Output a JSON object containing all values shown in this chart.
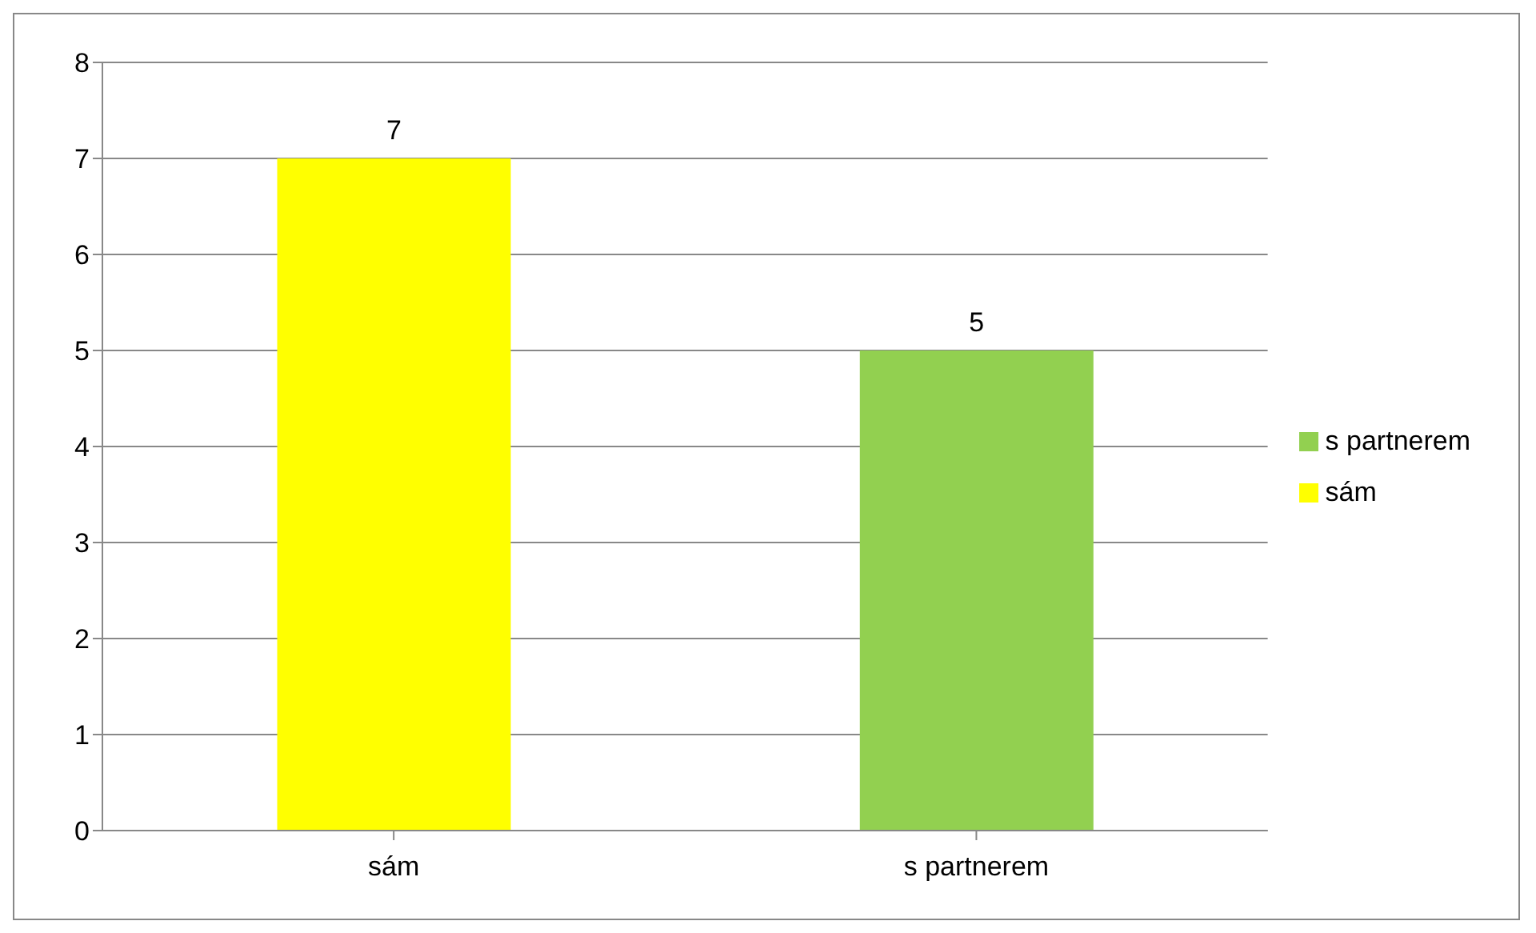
{
  "chart_data": {
    "type": "bar",
    "categories": [
      "sám",
      "s partnerem"
    ],
    "series": [
      {
        "name": "sám",
        "color": "#ffff00",
        "values": [
          7,
          null
        ]
      },
      {
        "name": "s partnerem",
        "color": "#92d050",
        "values": [
          null,
          5
        ]
      }
    ],
    "stacked": true,
    "ylim": [
      0,
      8
    ],
    "yticks": [
      0,
      1,
      2,
      3,
      4,
      5,
      6,
      7,
      8
    ],
    "grid": "y",
    "legend": "right",
    "data_labels": true
  }
}
